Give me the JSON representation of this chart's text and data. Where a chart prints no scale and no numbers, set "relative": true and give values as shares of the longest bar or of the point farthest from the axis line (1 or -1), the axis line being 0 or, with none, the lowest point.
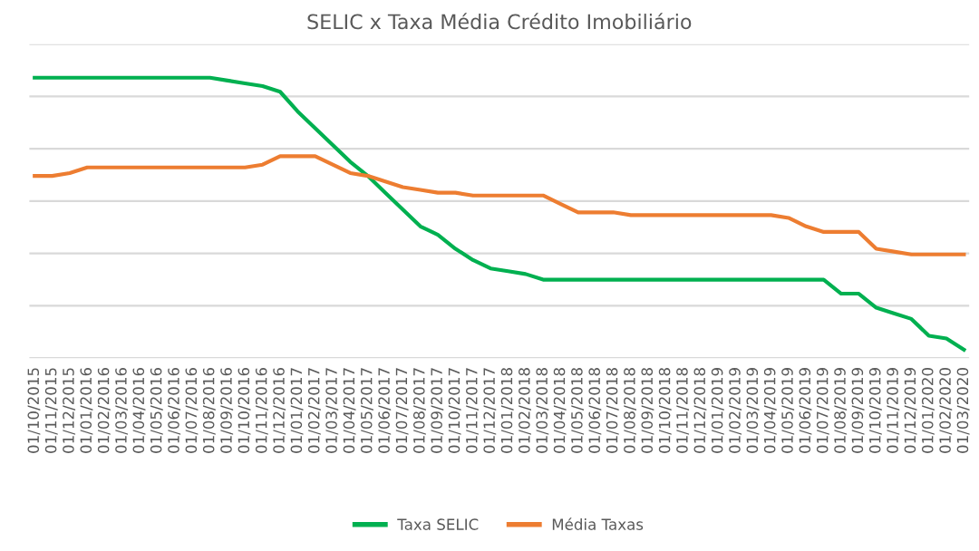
{
  "chart_data": {
    "type": "line",
    "title": "SELIC x Taxa Média Crédito Imobiliário",
    "relative": true,
    "grid": "y",
    "legend": "bottom",
    "marker": "none",
    "line_style": "solid",
    "categories": [
      "01/10/2015",
      "01/11/2015",
      "01/12/2015",
      "01/01/2016",
      "01/02/2016",
      "01/03/2016",
      "01/04/2016",
      "01/05/2016",
      "01/06/2016",
      "01/07/2016",
      "01/08/2016",
      "01/09/2016",
      "01/10/2016",
      "01/11/2016",
      "01/12/2016",
      "01/01/2017",
      "01/02/2017",
      "01/03/2017",
      "01/04/2017",
      "01/05/2017",
      "01/06/2017",
      "01/07/2017",
      "01/08/2017",
      "01/09/2017",
      "01/10/2017",
      "01/11/2017",
      "01/12/2017",
      "01/01/2018",
      "01/02/2018",
      "01/03/2018",
      "01/04/2018",
      "01/05/2018",
      "01/06/2018",
      "01/07/2018",
      "01/08/2018",
      "01/09/2018",
      "01/10/2018",
      "01/11/2018",
      "01/12/2018",
      "01/01/2019",
      "01/02/2019",
      "01/03/2019",
      "01/04/2019",
      "01/05/2019",
      "01/06/2019",
      "01/07/2019",
      "01/08/2019",
      "01/09/2019",
      "01/10/2019",
      "01/11/2019",
      "01/12/2019",
      "01/01/2020",
      "01/02/2020",
      "01/03/2020"
    ],
    "series": [
      {
        "name": "Taxa SELIC",
        "color": "#00b050",
        "values": [
          1.0,
          1.0,
          1.0,
          1.0,
          1.0,
          1.0,
          1.0,
          1.0,
          1.0,
          1.0,
          1.0,
          0.99,
          0.98,
          0.97,
          0.95,
          0.88,
          0.82,
          0.76,
          0.7,
          0.65,
          0.59,
          0.53,
          0.47,
          0.44,
          0.39,
          0.35,
          0.32,
          0.31,
          0.3,
          0.28,
          0.28,
          0.28,
          0.28,
          0.28,
          0.28,
          0.28,
          0.28,
          0.28,
          0.28,
          0.28,
          0.28,
          0.28,
          0.28,
          0.28,
          0.28,
          0.28,
          0.23,
          0.23,
          0.18,
          0.16,
          0.14,
          0.08,
          0.07,
          0.03
        ]
      },
      {
        "name": "Média Taxas",
        "color": "#ed7d31",
        "values": [
          0.65,
          0.65,
          0.66,
          0.68,
          0.68,
          0.68,
          0.68,
          0.68,
          0.68,
          0.68,
          0.68,
          0.68,
          0.68,
          0.69,
          0.72,
          0.72,
          0.72,
          0.69,
          0.66,
          0.65,
          0.63,
          0.61,
          0.6,
          0.59,
          0.59,
          0.58,
          0.58,
          0.58,
          0.58,
          0.58,
          0.55,
          0.52,
          0.52,
          0.52,
          0.51,
          0.51,
          0.51,
          0.51,
          0.51,
          0.51,
          0.51,
          0.51,
          0.51,
          0.5,
          0.47,
          0.45,
          0.45,
          0.45,
          0.39,
          0.38,
          0.37,
          0.37,
          0.37,
          0.37
        ]
      }
    ]
  }
}
